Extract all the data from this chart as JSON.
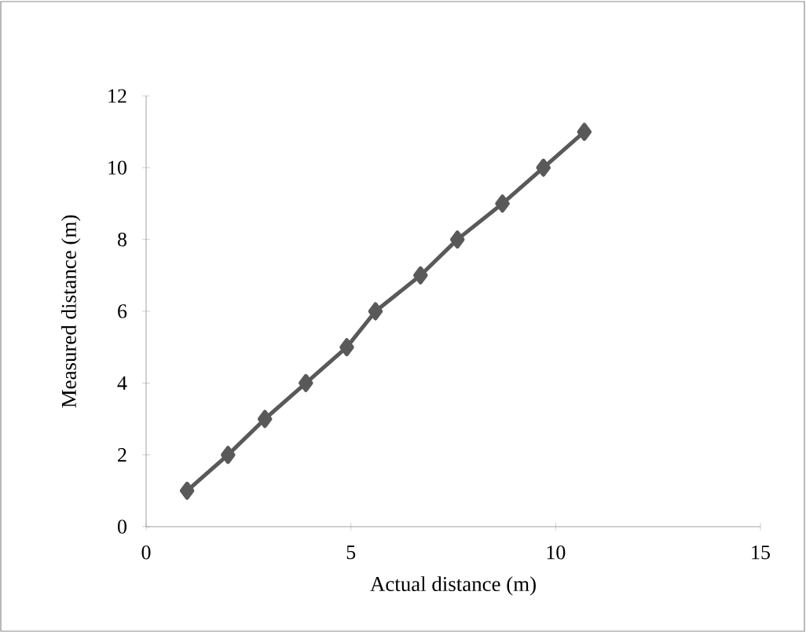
{
  "chart_data": {
    "type": "line",
    "xlabel": "Actual distance (m)",
    "ylabel": "Measured distance (m)",
    "x": [
      1.0,
      2.0,
      2.9,
      3.9,
      4.9,
      5.6,
      6.7,
      7.6,
      8.7,
      9.7,
      10.7
    ],
    "series": [
      {
        "color": "#595959",
        "values": [
          1,
          2,
          3,
          4,
          5,
          6,
          7,
          8,
          9,
          10,
          11
        ]
      }
    ],
    "xlim": [
      0,
      15
    ],
    "ylim": [
      0,
      12
    ],
    "xticks": [
      0,
      5,
      10,
      15
    ],
    "yticks": [
      0,
      2,
      4,
      6,
      8,
      10,
      12
    ],
    "marker": "diamond",
    "line_style": "solid"
  }
}
